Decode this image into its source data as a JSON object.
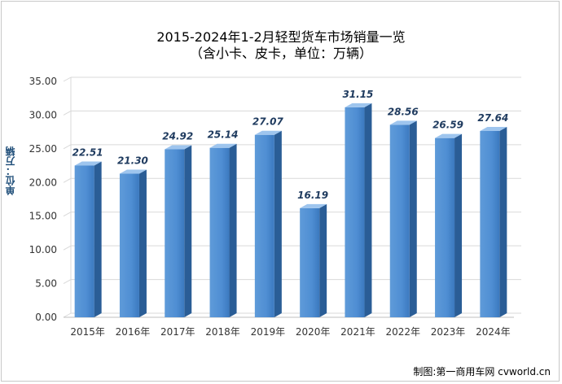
{
  "chart_data": {
    "type": "bar",
    "title": "2015-2024年1-2月轻型货车市场销量一览",
    "subtitle": "（含小卡、皮卡，单位：万辆）",
    "ylabel": "单位：万辆",
    "xlabel": "",
    "categories": [
      "2015年",
      "2016年",
      "2017年",
      "2018年",
      "2019年",
      "2020年",
      "2021年",
      "2022年",
      "2023年",
      "2024年"
    ],
    "values": [
      22.51,
      21.3,
      24.92,
      25.14,
      27.07,
      16.19,
      31.15,
      28.56,
      26.59,
      27.64
    ],
    "value_labels": [
      "22.51",
      "21.30",
      "24.92",
      "25.14",
      "27.07",
      "16.19",
      "31.15",
      "28.56",
      "26.59",
      "27.64"
    ],
    "ylim": [
      0,
      35
    ],
    "yticks": [
      "0.00",
      "5.00",
      "10.00",
      "15.00",
      "20.00",
      "25.00",
      "30.00",
      "35.00"
    ],
    "grid": true,
    "legend": "none",
    "colors": {
      "bar_front_top": "#7fb2e6",
      "bar_front_bottom": "#3a7cc4",
      "bar_side": "#2a5d96",
      "bar_top": "#9ec5ee",
      "label": "#1f3b5f",
      "grid": "#d9d9d9"
    }
  },
  "credit": "制图:第一商用车网 cvworld.cn"
}
